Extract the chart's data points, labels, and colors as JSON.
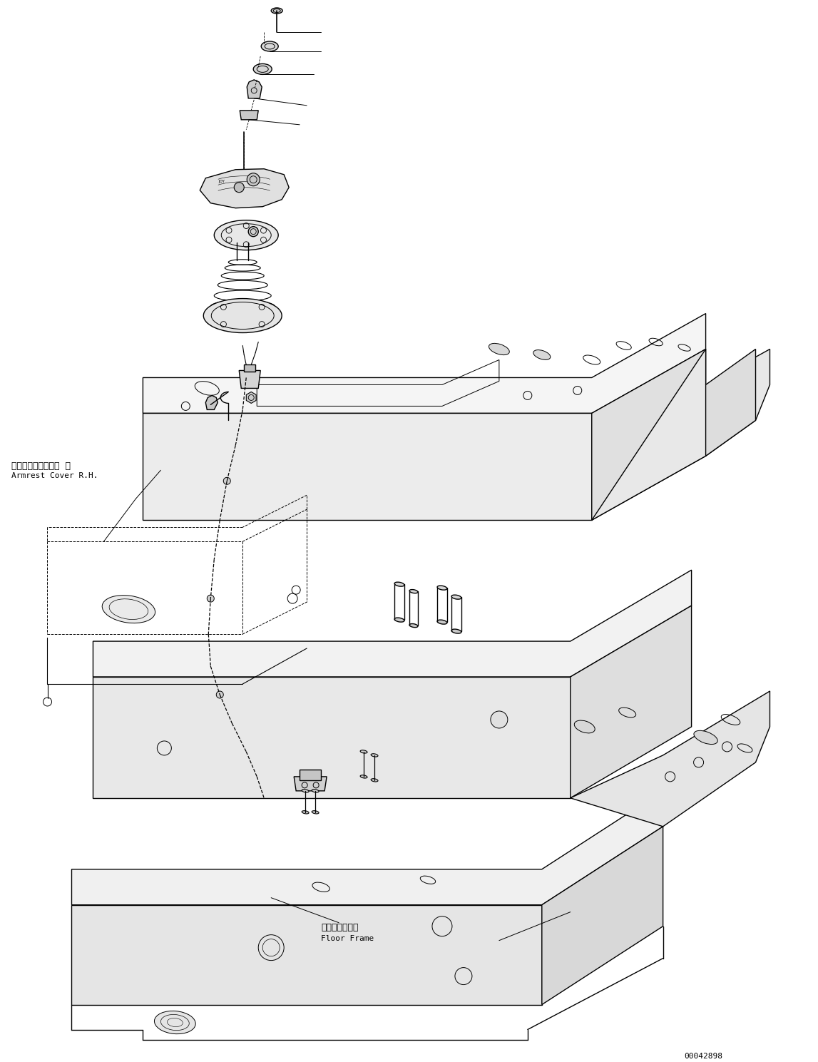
{
  "figsize": [
    11.47,
    14.89
  ],
  "dpi": 100,
  "bg_color": "#ffffff",
  "line_color": "#000000",
  "line_width": 1.0,
  "label_armrest_jp": "アームレストカバー  右",
  "label_armrest_en": "Armrest Cover R.H.",
  "label_floor_jp": "フロアフレーム",
  "label_floor_en": "Floor Frame",
  "watermark": "00042898"
}
